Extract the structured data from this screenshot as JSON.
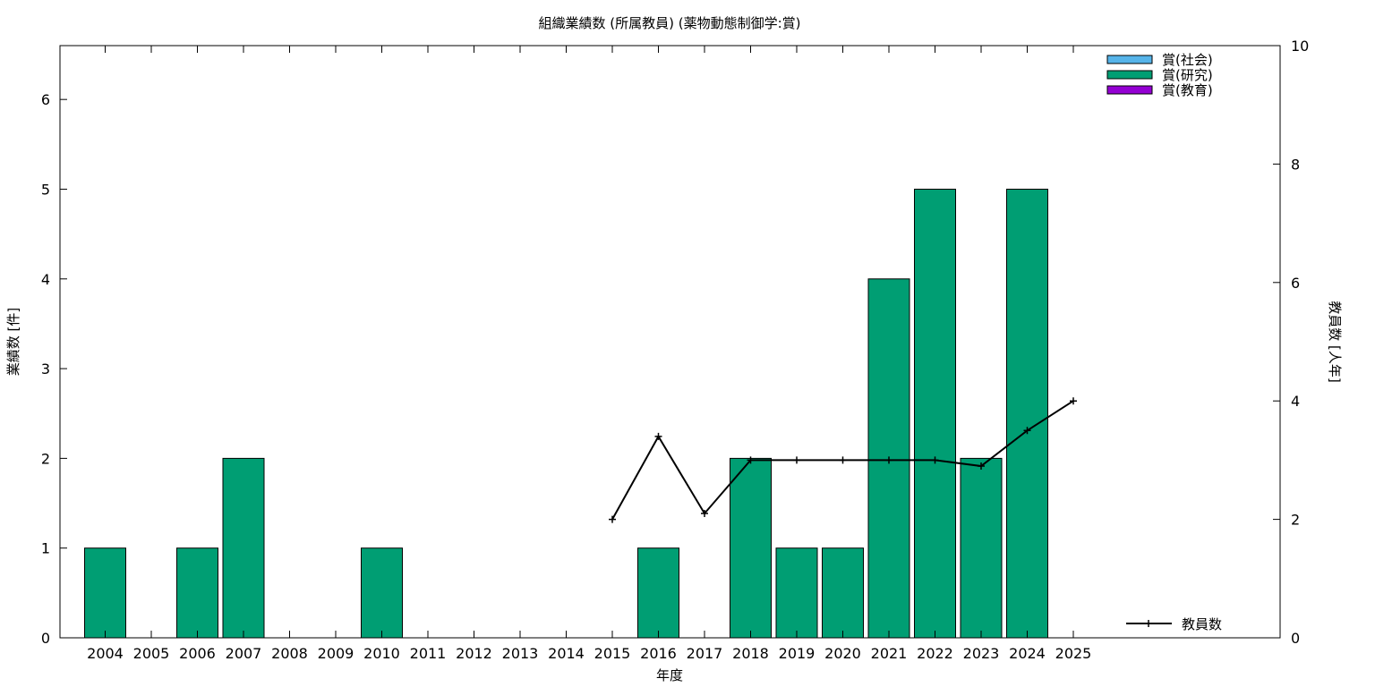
{
  "chart_data": {
    "type": "bar",
    "title": "組織業績数 (所属教員) (薬物動態制御学:賞)",
    "xlabel": "年度",
    "ylabel": "業績数 [件]",
    "y2label": "教員数 [人年]",
    "ylim": [
      0,
      6.6
    ],
    "y2lim": [
      0,
      10
    ],
    "yticks": [
      0,
      1,
      2,
      3,
      4,
      5,
      6
    ],
    "y2ticks": [
      0,
      2,
      4,
      6,
      8,
      10
    ],
    "categories": [
      "2004",
      "2005",
      "2006",
      "2007",
      "2008",
      "2009",
      "2010",
      "2011",
      "2012",
      "2013",
      "2014",
      "2015",
      "2016",
      "2017",
      "2018",
      "2019",
      "2020",
      "2021",
      "2022",
      "2023",
      "2024",
      "2025"
    ],
    "series": [
      {
        "name": "賞(社会)",
        "color": "#56b4e9",
        "values": [
          0,
          0,
          0,
          0,
          0,
          0,
          0,
          0,
          0,
          0,
          0,
          0,
          0,
          0,
          0,
          0,
          0,
          0,
          0,
          0,
          0,
          0
        ]
      },
      {
        "name": "賞(研究)",
        "color": "#009e73",
        "values": [
          1,
          0,
          1,
          2,
          0,
          0,
          1,
          0,
          0,
          0,
          0,
          0,
          1,
          0,
          2,
          1,
          1,
          4,
          5,
          2,
          5,
          0
        ]
      },
      {
        "name": "賞(教育)",
        "color": "#9400d3",
        "values": [
          0,
          0,
          0,
          0,
          0,
          0,
          0,
          0,
          0,
          0,
          0,
          0,
          0,
          0,
          0,
          0,
          0,
          0,
          0,
          0,
          0,
          0
        ]
      }
    ],
    "line_series": {
      "name": "教員数",
      "color": "#000000",
      "x": [
        "2015",
        "2016",
        "2017",
        "2018",
        "2019",
        "2020",
        "2021",
        "2022",
        "2023",
        "2024",
        "2025"
      ],
      "values": [
        2.0,
        3.4,
        2.1,
        3.0,
        3.0,
        3.0,
        3.0,
        3.0,
        2.9,
        3.5,
        4.0
      ]
    },
    "grid": false,
    "legend_placement": "top-right"
  }
}
